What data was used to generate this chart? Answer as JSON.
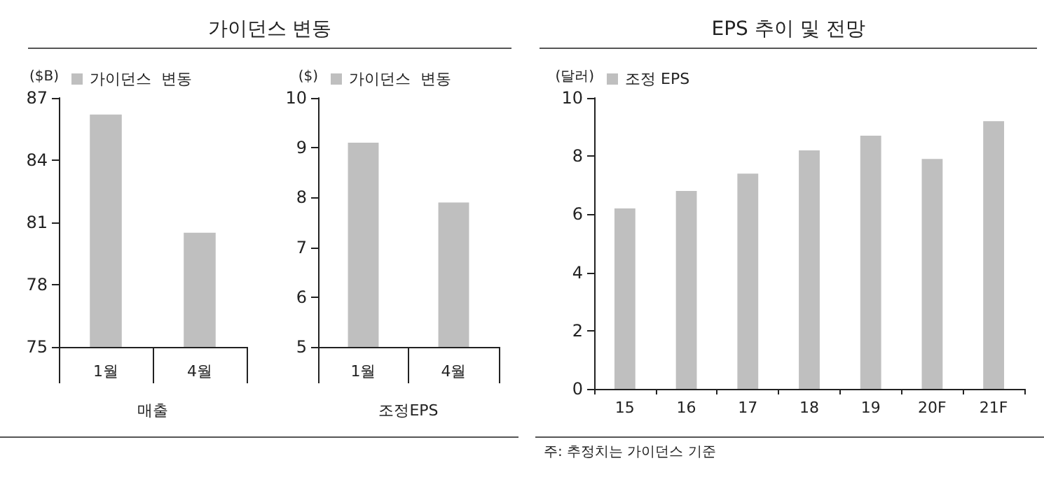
{
  "chart_data": [
    {
      "type": "bar",
      "title": "가이던스 변동",
      "ylabel": "($B)",
      "xlabel": "매출",
      "categories": [
        "1월",
        "4월"
      ],
      "series": [
        {
          "name": "가이던스  변동",
          "color": "#bfbfbf",
          "values": [
            86.2,
            80.5
          ]
        }
      ],
      "ylim": [
        75,
        87
      ],
      "yticks": [
        75,
        78,
        81,
        84,
        87
      ],
      "grid": false,
      "legend": "top left"
    },
    {
      "type": "bar",
      "ylabel": "($)",
      "xlabel": "조정EPS",
      "categories": [
        "1월",
        "4월"
      ],
      "series": [
        {
          "name": "가이던스  변동",
          "color": "#bfbfbf",
          "values": [
            9.1,
            7.9
          ]
        }
      ],
      "ylim": [
        5,
        10
      ],
      "yticks": [
        5,
        6,
        7,
        8,
        9,
        10
      ],
      "grid": false,
      "legend": "top left"
    },
    {
      "type": "bar",
      "title": "EPS 추이 및 전망",
      "ylabel": "(달러)",
      "categories": [
        "15",
        "16",
        "17",
        "18",
        "19",
        "20F",
        "21F"
      ],
      "series": [
        {
          "name": "조정 EPS",
          "color": "#bfbfbf",
          "values": [
            6.2,
            6.8,
            7.4,
            8.2,
            8.7,
            7.9,
            9.2
          ]
        }
      ],
      "ylim": [
        0,
        10
      ],
      "yticks": [
        0,
        2,
        4,
        6,
        8,
        10
      ],
      "grid": false,
      "legend": "top left",
      "annotations": [
        "주: 추정치는 가이던스 기준"
      ]
    }
  ]
}
